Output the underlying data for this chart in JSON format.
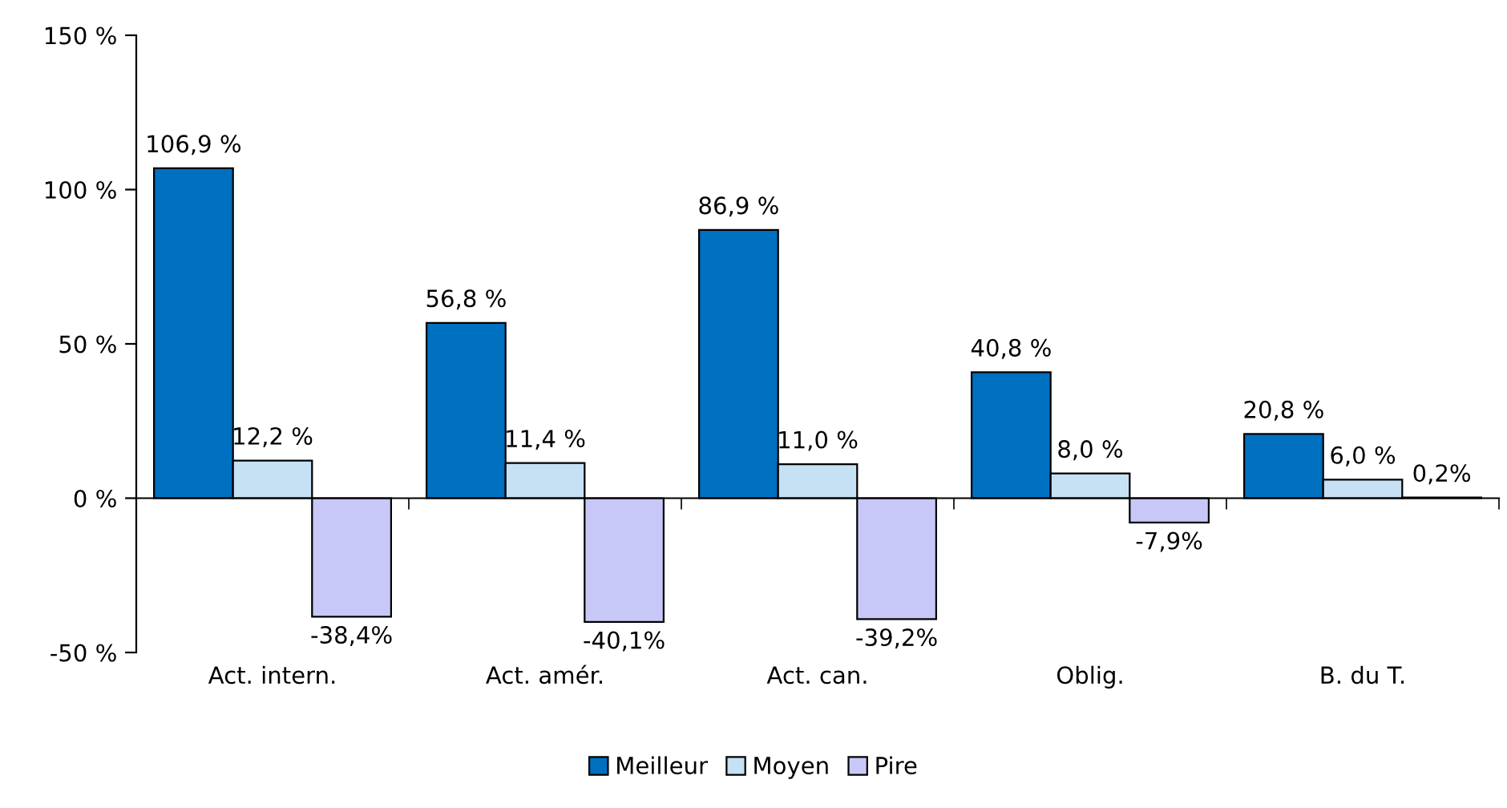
{
  "chart_data": {
    "type": "bar",
    "categories": [
      "Act. intern.",
      "Act. amér.",
      "Act. can.",
      "Oblig.",
      "B. du T."
    ],
    "series": [
      {
        "name": "Meilleur",
        "color": "#0070c0",
        "values": [
          106.9,
          56.8,
          86.9,
          40.8,
          20.8
        ],
        "value_labels": [
          "106,9 %",
          "56,8 %",
          "86,9 %",
          "40,8 %",
          "20,8 %"
        ]
      },
      {
        "name": "Moyen",
        "color": "#c6e0f4",
        "values": [
          12.2,
          11.4,
          11.0,
          8.0,
          6.0
        ],
        "value_labels": [
          "12,2 %",
          "11,4 %",
          "11,0 %",
          "8,0 %",
          "6,0 %"
        ]
      },
      {
        "name": "Pire",
        "color": "#c8c8f8",
        "values": [
          -38.4,
          -40.1,
          -39.2,
          -7.9,
          0.2
        ],
        "value_labels": [
          "-38,4%",
          "-40,1%",
          "-39,2%",
          "-7,9%",
          "0,2%"
        ]
      }
    ],
    "ylim": [
      -50,
      150
    ],
    "yticks": [
      {
        "value": -50,
        "label": "-50 %"
      },
      {
        "value": 0,
        "label": "0 %"
      },
      {
        "value": 50,
        "label": "50 %"
      },
      {
        "value": 100,
        "label": "100 %"
      },
      {
        "value": 150,
        "label": "150 %"
      }
    ],
    "legend": "bottom"
  }
}
